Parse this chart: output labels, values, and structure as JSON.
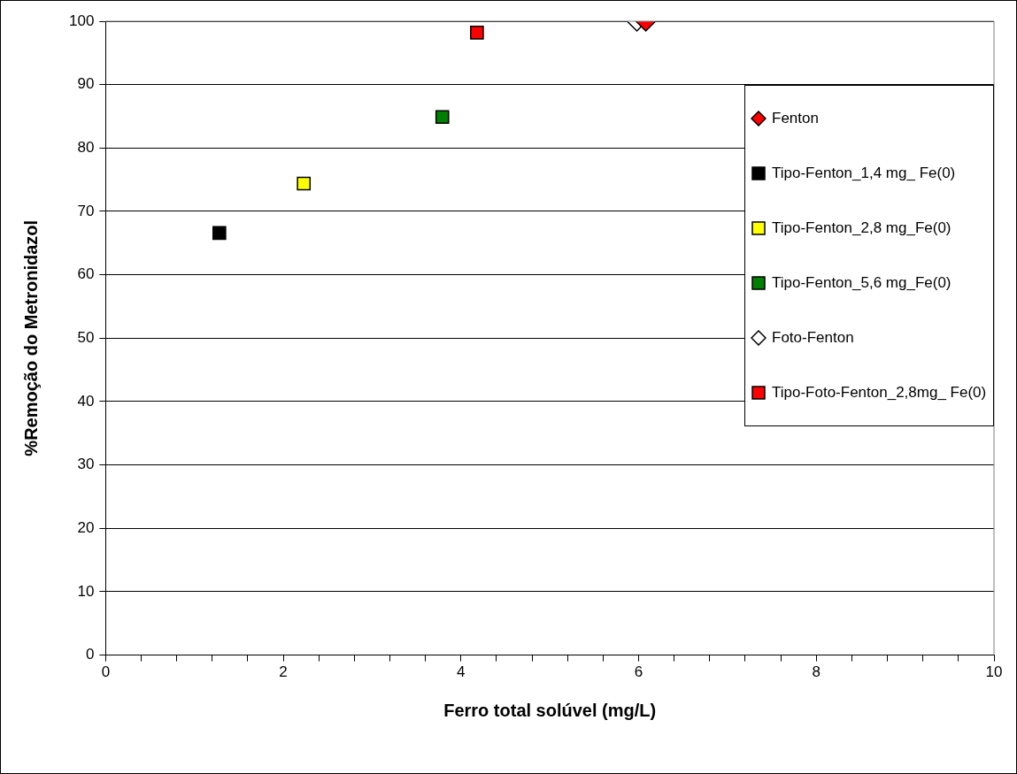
{
  "chart_data": {
    "type": "scatter",
    "xlabel": "Ferro total solúvel (mg/L)",
    "ylabel": "%Remoção do Metronidazol",
    "xlim": [
      0,
      10
    ],
    "xticks": [
      0,
      {
        "value": 0.4,
        "label": null
      },
      {
        "value": 0.8,
        "label": null
      },
      {
        "value": 1.2,
        "label": null
      },
      {
        "value": 1.6,
        "label": null
      },
      2,
      {
        "value": 2.4,
        "label": null
      },
      {
        "value": 2.8,
        "label": null
      },
      {
        "value": 3.2,
        "label": null
      },
      {
        "value": 3.6,
        "label": null
      },
      4,
      {
        "value": 4.4,
        "label": null
      },
      {
        "value": 4.8,
        "label": null
      },
      {
        "value": 5.2,
        "label": null
      },
      {
        "value": 5.6,
        "label": null
      },
      6,
      {
        "value": 6.4,
        "label": null
      },
      {
        "value": 6.8,
        "label": null
      },
      {
        "value": 7.2,
        "label": null
      },
      {
        "value": 7.6,
        "label": null
      },
      8,
      {
        "value": 8.4,
        "label": null
      },
      {
        "value": 8.8,
        "label": null
      },
      {
        "value": 9.2,
        "label": null
      },
      {
        "value": 9.6,
        "label": null
      },
      10
    ],
    "ylim": [
      0,
      100
    ],
    "yticks": [
      0,
      10,
      20,
      30,
      40,
      50,
      60,
      70,
      80,
      90,
      100
    ],
    "grid": "y",
    "legend": "right",
    "series": [
      {
        "name": "Fenton",
        "color": "#ff0000",
        "marker": "diamond",
        "x": [
          6.08
        ],
        "values": [
          100
        ]
      },
      {
        "name": "Tipo-Fenton_1,4 mg_ Fe(0)",
        "color": "#000000",
        "marker": "square",
        "x": [
          1.28
        ],
        "values": [
          66.6
        ]
      },
      {
        "name": "Tipo-Fenton_2,8 mg_Fe(0)",
        "color": "#ffff00",
        "marker": "square",
        "x": [
          2.23
        ],
        "values": [
          74.4
        ]
      },
      {
        "name": "Tipo-Fenton_5,6 mg_Fe(0)",
        "color": "#008000",
        "marker": "square",
        "x": [
          3.79
        ],
        "values": [
          84.9
        ]
      },
      {
        "name": "Foto-Fenton",
        "color": "#ffffff",
        "marker": "diamond",
        "x": [
          5.98
        ],
        "values": [
          100
        ]
      },
      {
        "name": "Tipo-Foto-Fenton_2,8mg_ Fe(0)",
        "color": "#ff0000",
        "marker": "square",
        "x": [
          4.18
        ],
        "values": [
          98.2
        ]
      }
    ]
  }
}
